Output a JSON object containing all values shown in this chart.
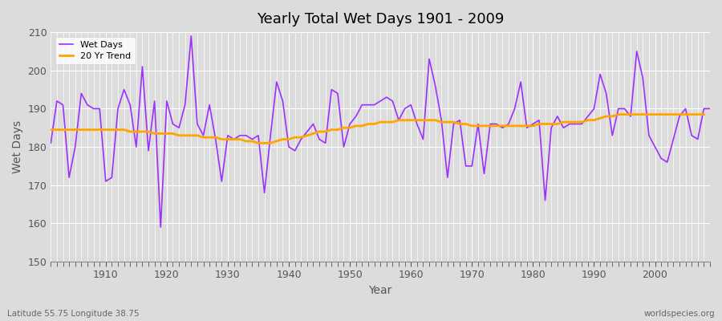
{
  "title": "Yearly Total Wet Days 1901 - 2009",
  "xlabel": "Year",
  "ylabel": "Wet Days",
  "subtitle_left": "Latitude 55.75 Longitude 38.75",
  "subtitle_right": "worldspecies.org",
  "start_year": 1901,
  "end_year": 2009,
  "wet_days_color": "#9B30FF",
  "trend_color": "#FFA500",
  "bg_color": "#DCDCDC",
  "plot_bg_color": "#DCDCDC",
  "ylim": [
    150,
    210
  ],
  "yticks": [
    150,
    160,
    170,
    180,
    190,
    200,
    210
  ],
  "wet_days": [
    181,
    192,
    191,
    172,
    180,
    194,
    191,
    190,
    190,
    171,
    172,
    190,
    195,
    191,
    180,
    201,
    179,
    192,
    159,
    192,
    186,
    185,
    191,
    209,
    186,
    183,
    191,
    182,
    171,
    183,
    182,
    183,
    183,
    182,
    183,
    168,
    183,
    197,
    192,
    180,
    179,
    182,
    184,
    186,
    182,
    181,
    195,
    194,
    180,
    186,
    188,
    191,
    191,
    191,
    192,
    193,
    192,
    187,
    190,
    191,
    186,
    182,
    203,
    196,
    187,
    172,
    186,
    187,
    175,
    175,
    186,
    173,
    186,
    186,
    185,
    186,
    190,
    197,
    185,
    186,
    187,
    166,
    185,
    188,
    185,
    186,
    186,
    186,
    188,
    190,
    199,
    194,
    183,
    190,
    190,
    188,
    205,
    198,
    183,
    180,
    177,
    176,
    182,
    188,
    190,
    183,
    182,
    190,
    190
  ],
  "trend": [
    184.5,
    184.5,
    184.5,
    184.5,
    184.5,
    184.5,
    184.5,
    184.5,
    184.5,
    184.5,
    184.5,
    184.5,
    184.5,
    184.0,
    184.0,
    184.0,
    184.0,
    183.5,
    183.5,
    183.5,
    183.5,
    183.0,
    183.0,
    183.0,
    183.0,
    182.5,
    182.5,
    182.5,
    182.0,
    182.0,
    182.0,
    182.0,
    181.5,
    181.5,
    181.0,
    181.0,
    181.0,
    181.5,
    182.0,
    182.0,
    182.5,
    182.5,
    183.0,
    183.5,
    184.0,
    184.0,
    184.5,
    184.5,
    185.0,
    185.0,
    185.5,
    185.5,
    186.0,
    186.0,
    186.5,
    186.5,
    186.5,
    187.0,
    187.0,
    187.0,
    187.0,
    187.0,
    187.0,
    187.0,
    186.5,
    186.5,
    186.5,
    186.0,
    186.0,
    185.5,
    185.5,
    185.5,
    185.5,
    185.5,
    185.5,
    185.5,
    185.5,
    185.5,
    185.5,
    185.5,
    186.0,
    186.0,
    186.0,
    186.0,
    186.5,
    186.5,
    186.5,
    186.5,
    187.0,
    187.0,
    187.5,
    188.0,
    188.0,
    188.5,
    188.5,
    188.5,
    188.5,
    188.5,
    188.5,
    188.5,
    188.5,
    188.5,
    188.5,
    188.5,
    188.5,
    188.5,
    188.5,
    188.5
  ]
}
